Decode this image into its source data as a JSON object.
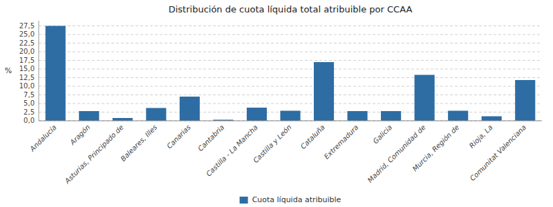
{
  "chart_data": {
    "type": "bar",
    "title": "Distribución de cuota líquida total atribuible por CCAA",
    "ylabel": "%",
    "categories": [
      "Andalucía",
      "Aragón",
      "Asturias, Principado de",
      "Baleares, Illes",
      "Canarias",
      "Cantabria",
      "Castilla - La Mancha",
      "Castilla y León",
      "Cataluña",
      "Extremadura",
      "Galicia",
      "Madrid, Comunidad de",
      "Murcia, Región de",
      "Rioja, La",
      "Comunitat Valenciana"
    ],
    "series": [
      {
        "name": "Cuota líquida atribuible",
        "color": "#2E6DA4",
        "values": [
          27.5,
          2.8,
          0.8,
          3.7,
          7.0,
          0.3,
          3.8,
          2.9,
          17.0,
          2.8,
          2.8,
          13.3,
          2.9,
          1.3,
          11.8
        ]
      }
    ],
    "ylim": [
      0,
      29
    ],
    "yticks": [
      {
        "value": 0.0,
        "label": "0,0"
      },
      {
        "value": 2.5,
        "label": "2,5"
      },
      {
        "value": 5.0,
        "label": "5,0"
      },
      {
        "value": 7.5,
        "label": "7,5"
      },
      {
        "value": 10.0,
        "label": "10,0"
      },
      {
        "value": 12.5,
        "label": "12,5"
      },
      {
        "value": 15.0,
        "label": "15,0"
      },
      {
        "value": 17.5,
        "label": "17,5"
      },
      {
        "value": 20.0,
        "label": "20,0"
      },
      {
        "value": 22.5,
        "label": "22,5"
      },
      {
        "value": 25.0,
        "label": "25,0"
      },
      {
        "value": 27.5,
        "label": "27,5"
      }
    ],
    "grid": true,
    "legend": "bottom"
  }
}
